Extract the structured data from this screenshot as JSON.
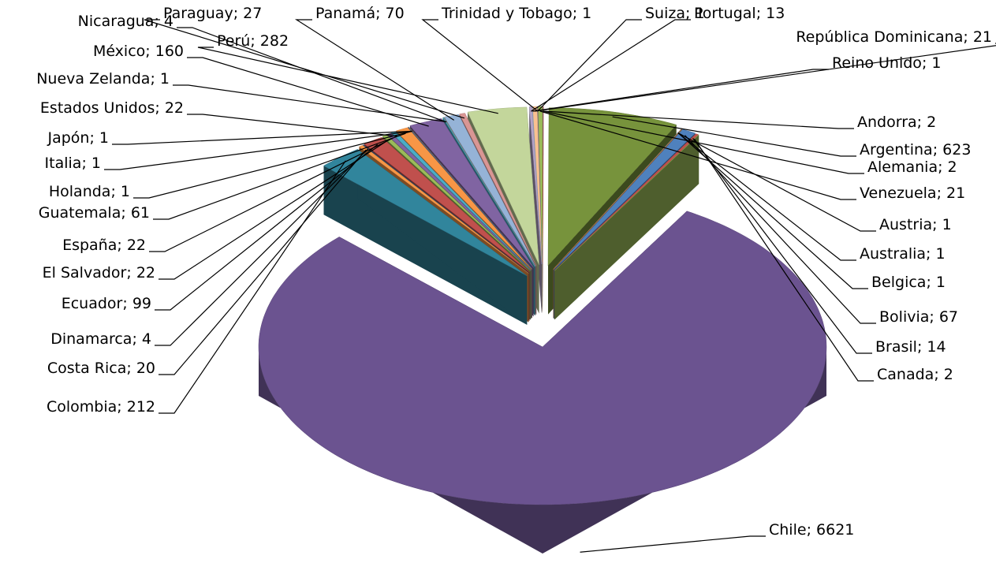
{
  "chart_data": {
    "type": "pie",
    "categories": [
      "Alemania",
      "Andorra",
      "Argentina",
      "Australia",
      "Austria",
      "Belgica",
      "Bolivia",
      "Brasil",
      "Canada",
      "Chile",
      "Colombia",
      "Costa Rica",
      "Dinamarca",
      "Ecuador",
      "El Salvador",
      "España",
      "Estados Unidos",
      "Guatemala",
      "Holanda",
      "Italia",
      "Japón",
      "México",
      "Nicaragua",
      "Nueva Zelanda",
      "Panamá",
      "Paraguay",
      "Perú",
      "Portugal",
      "Reino Unido",
      "República Dominicana",
      "Suiza",
      "Trinidad y Tobago",
      "Venezuela"
    ],
    "values": [
      2,
      2,
      623,
      1,
      1,
      1,
      67,
      14,
      2,
      6621,
      212,
      20,
      4,
      99,
      22,
      22,
      22,
      61,
      1,
      1,
      1,
      160,
      4,
      1,
      70,
      27,
      282,
      13,
      1,
      21,
      1,
      1,
      21
    ],
    "colors": [
      "#4f81bd",
      "#c0504d",
      "#77933c",
      "#8064a2",
      "#4bacc6",
      "#f79646",
      "#4f81bd",
      "#c0504d",
      "#9bbb59",
      "#6b5390",
      "#31859c",
      "#f79646",
      "#2c4d75",
      "#c0504d",
      "#9bbb59",
      "#8064a2",
      "#4bacc6",
      "#f79646",
      "#4f81bd",
      "#c0504d",
      "#9bbb59",
      "#8064a2",
      "#4bacc6",
      "#f79646",
      "#95b3d7",
      "#d99694",
      "#c3d69b",
      "#b3a2c7",
      "#93cddd",
      "#fac090",
      "#4f81bd",
      "#c0504d",
      "#9bbb59"
    ],
    "label_separator": "; "
  }
}
